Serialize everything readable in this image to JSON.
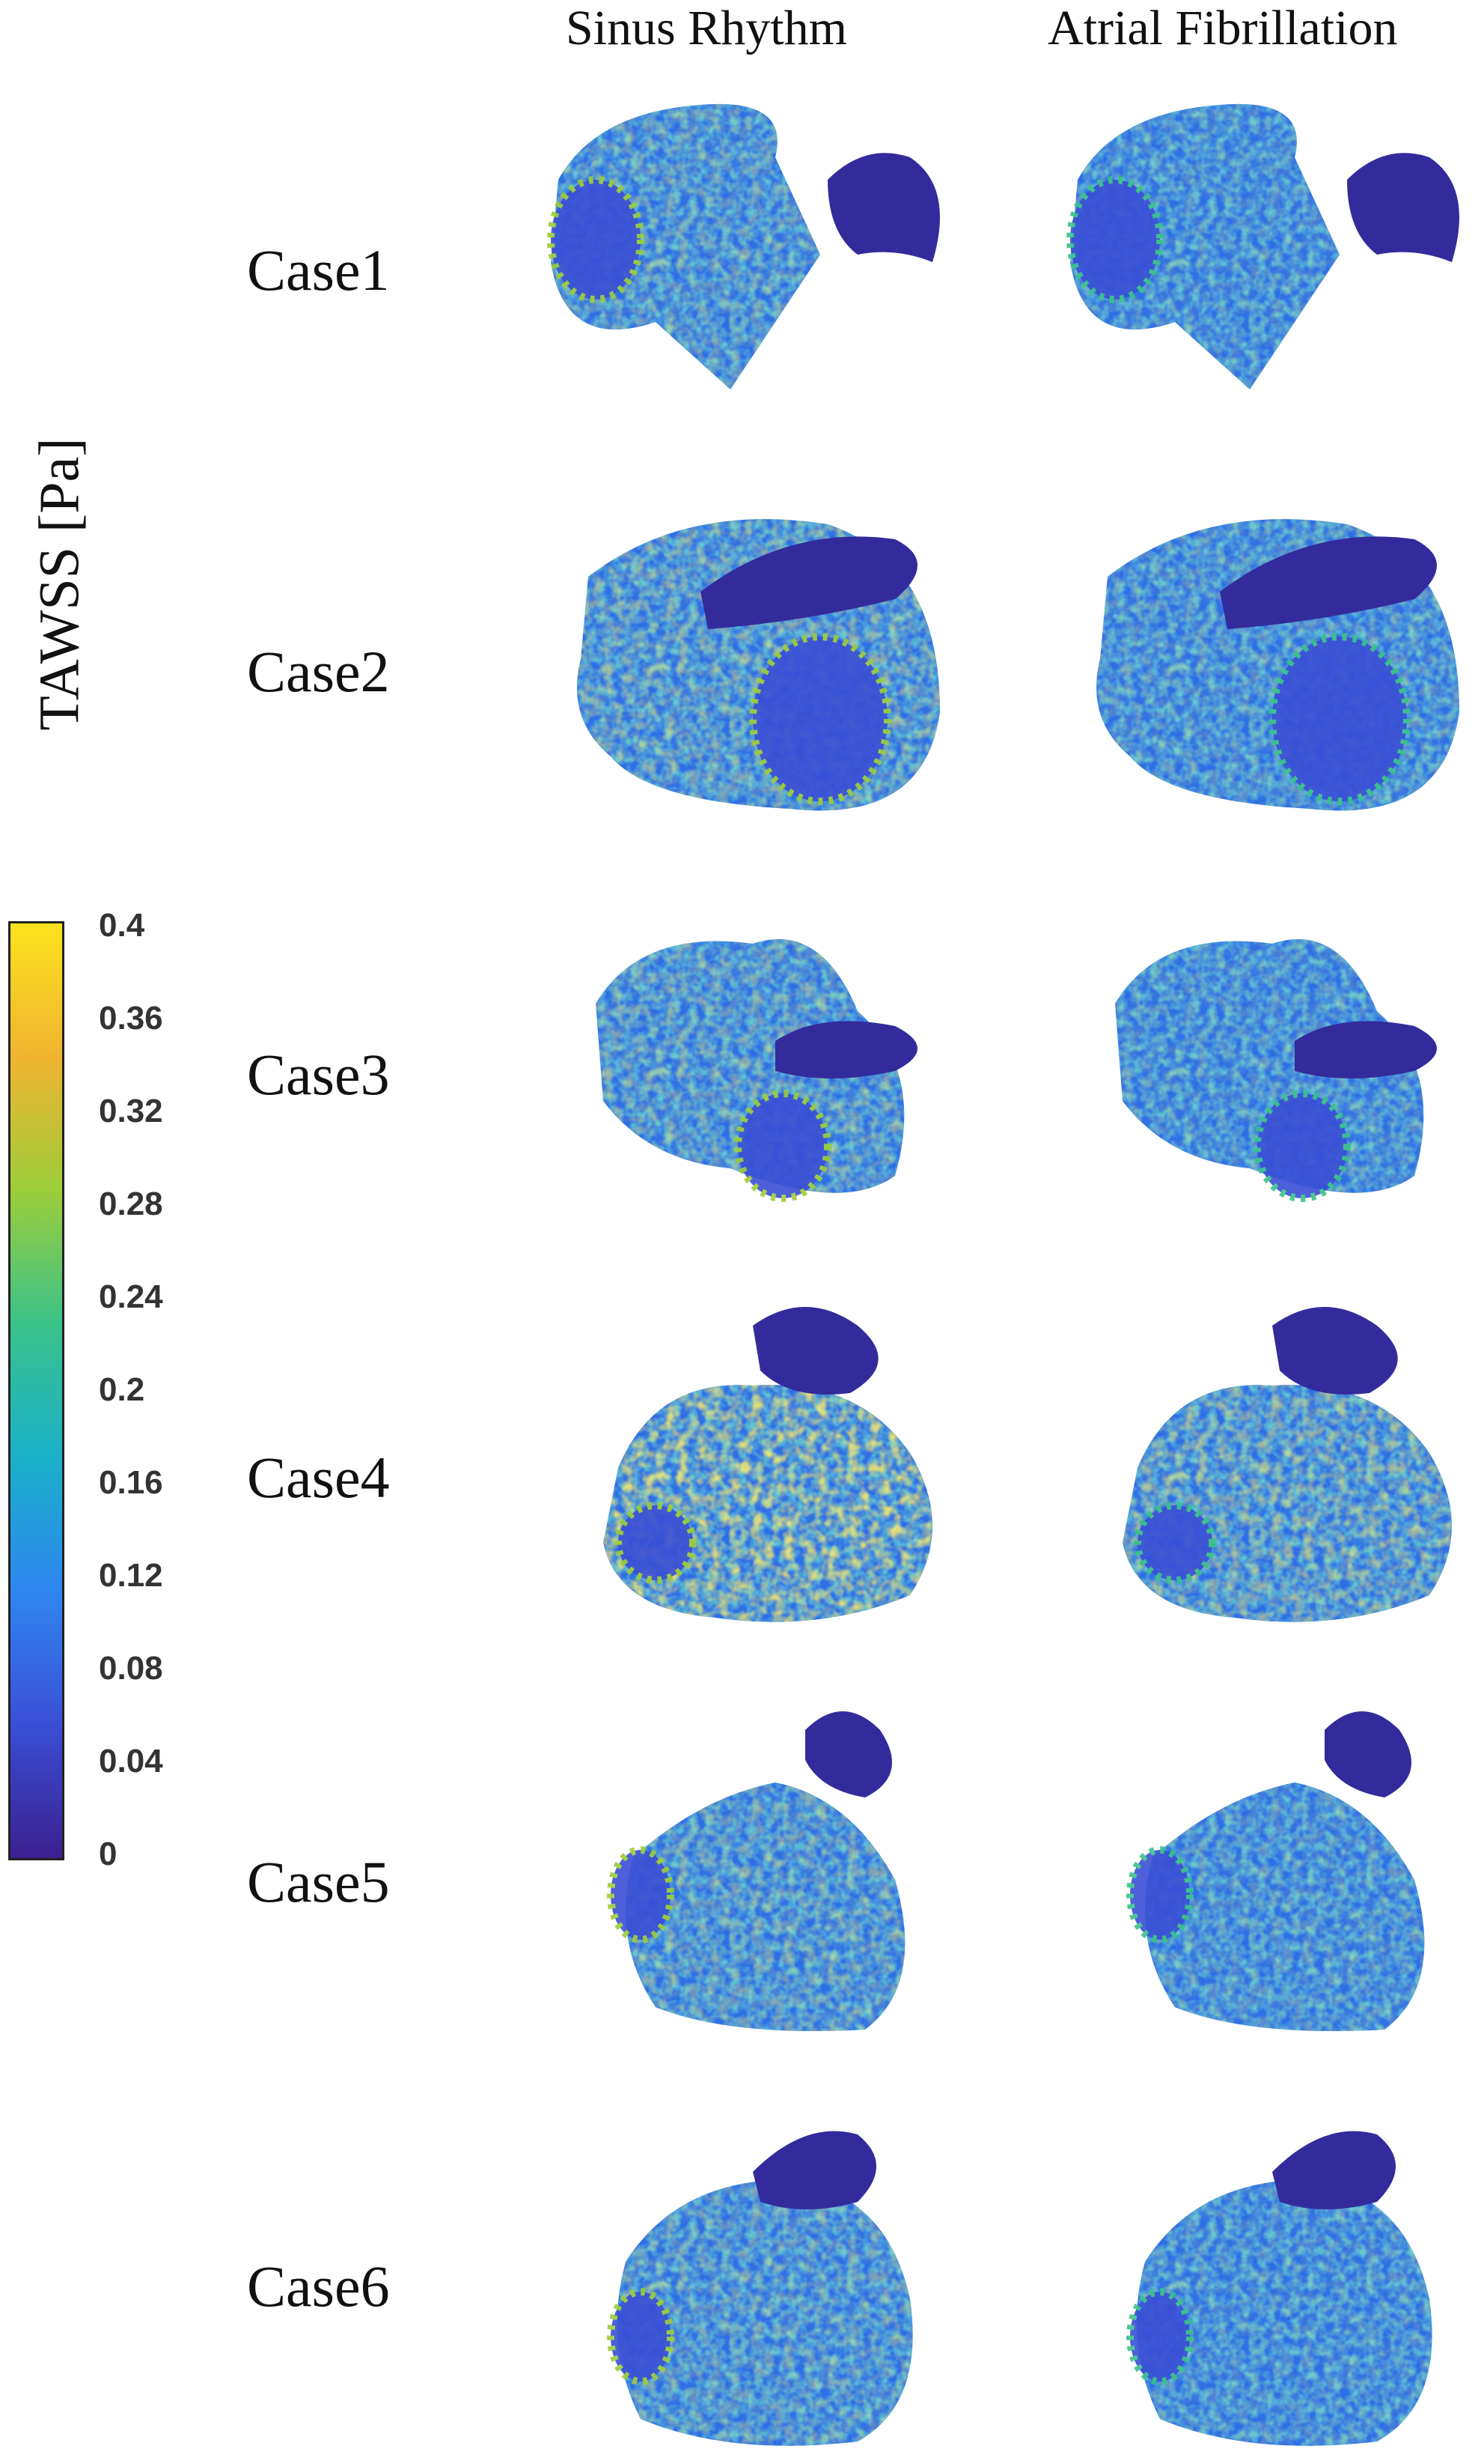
{
  "columns": {
    "sinus": "Sinus Rhythm",
    "af": "Atrial Fibrillation"
  },
  "cases": [
    "Case1",
    "Case2",
    "Case3",
    "Case4",
    "Case5",
    "Case6"
  ],
  "colorbar": {
    "label": "TAWSS [Pa]",
    "ticks": [
      "0.4",
      "0.36",
      "0.32",
      "0.28",
      "0.24",
      "0.2",
      "0.16",
      "0.12",
      "0.08",
      "0.04",
      "0"
    ],
    "range": [
      0,
      0.4
    ],
    "colors": [
      "#3b1f8f",
      "#3a4fd6",
      "#2f86f0",
      "#1ab0c8",
      "#3bc28a",
      "#9ccd3a",
      "#f0b431",
      "#fbe21e"
    ]
  }
}
